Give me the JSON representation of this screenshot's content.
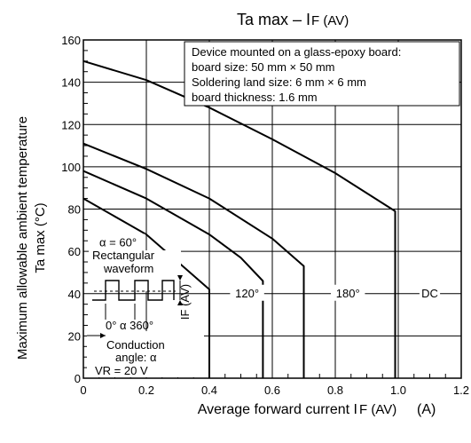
{
  "chart_data": {
    "type": "line",
    "title_main": "Ta max – I",
    "title_sub": "F (AV)",
    "ylabel_line1": "Maximum allowable ambient temperature",
    "ylabel_line2": "Ta max    (°C)",
    "xlabel_main": "Average forward current   I",
    "xlabel_sub": "F (AV)",
    "xlabel_unit": "(A)",
    "xlim": [
      0,
      1.2
    ],
    "ylim": [
      0,
      160
    ],
    "x_ticks": [
      "0",
      "0.2",
      "0.4",
      "0.6",
      "0.8",
      "1.0",
      "1.2"
    ],
    "y_ticks": [
      "0",
      "20",
      "40",
      "60",
      "80",
      "100",
      "120",
      "140",
      "160"
    ],
    "grid": true,
    "series": [
      {
        "name": "DC",
        "points": [
          [
            0,
            150
          ],
          [
            0.2,
            141
          ],
          [
            0.4,
            128
          ],
          [
            0.6,
            113
          ],
          [
            0.8,
            97
          ],
          [
            0.99,
            79
          ],
          [
            0.99,
            0
          ]
        ]
      },
      {
        "name": "180°",
        "points": [
          [
            0,
            111
          ],
          [
            0.2,
            99
          ],
          [
            0.4,
            85
          ],
          [
            0.6,
            66
          ],
          [
            0.7,
            53
          ],
          [
            0.7,
            0
          ]
        ]
      },
      {
        "name": "120°",
        "points": [
          [
            0,
            98
          ],
          [
            0.2,
            85
          ],
          [
            0.4,
            68
          ],
          [
            0.5,
            57
          ],
          [
            0.57,
            46
          ],
          [
            0.57,
            0
          ]
        ]
      },
      {
        "name": "α = 60°",
        "points": [
          [
            0,
            85
          ],
          [
            0.2,
            68
          ],
          [
            0.3,
            55
          ],
          [
            0.4,
            42
          ],
          [
            0.4,
            0
          ]
        ]
      }
    ],
    "series_labels": [
      {
        "text": "DC",
        "x": 1.1,
        "y": 40
      },
      {
        "text": "180°",
        "x": 0.84,
        "y": 40
      },
      {
        "text": "120°",
        "x": 0.52,
        "y": 40
      },
      {
        "text": "α = 60°",
        "x": 0.11,
        "y": 64
      }
    ],
    "annotation_box": [
      "Device mounted on a glass-epoxy board:",
      "board size: 50 mm × 50 mm",
      "Soldering land size: 6 mm × 6 mm",
      "board thickness: 1.6 mm"
    ],
    "inset_labels": {
      "rect_line1": "Rectangular",
      "rect_line2": "waveform",
      "if_axis": "IF (AV)",
      "angle_row": "0°  α  360°",
      "cond_line1": "Conduction",
      "cond_line2": "angle: α",
      "vr": "VR = 20 V"
    }
  }
}
